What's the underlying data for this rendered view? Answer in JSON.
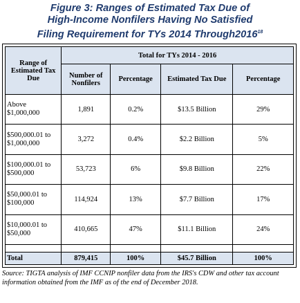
{
  "title_lines": [
    "Figure 3:  Ranges of Estimated Tax Due of",
    "High-Income Nonfilers Having No Satisfied",
    "Filing Requirement for TYs 2014 Through2016"
  ],
  "title_footnote": "18",
  "table": {
    "range_header": "Range of Estimated Tax Due",
    "group_header": "Total for TYs 2014 - 2016",
    "columns": [
      "Number of Nonfilers",
      "Percentage",
      "Estimated Tax Due",
      "Percentage"
    ],
    "rows": [
      {
        "range": "Above $1,000,000",
        "nonfilers": "1,891",
        "pct_nonfilers": "0.2%",
        "tax_due": "$13.5 Billion",
        "pct_tax": "29%"
      },
      {
        "range": "$500,000.01 to $1,000,000",
        "nonfilers": "3,272",
        "pct_nonfilers": "0.4%",
        "tax_due": "$2.2 Billion",
        "pct_tax": "5%"
      },
      {
        "range": "$100,000.01 to $500,000",
        "nonfilers": "53,723",
        "pct_nonfilers": "6%",
        "tax_due": "$9.8 Billion",
        "pct_tax": "22%"
      },
      {
        "range": "$50,000.01 to $100,000",
        "nonfilers": "114,924",
        "pct_nonfilers": "13%",
        "tax_due": "$7.7 Billion",
        "pct_tax": "17%"
      },
      {
        "range": "$10,000.01 to $50,000",
        "nonfilers": "410,665",
        "pct_nonfilers": "47%",
        "tax_due": "$11.1 Billion",
        "pct_tax": "24%"
      }
    ],
    "total": {
      "range": "Total",
      "nonfilers": "879,415",
      "pct_nonfilers": "100%",
      "tax_due": "$45.7 Billion",
      "pct_tax": "100%"
    }
  },
  "source": "Source:  TIGTA analysis of IMF CCNIP nonfiler data from the IRS's CDW and other tax account information obtained from the IMF as of the end of December 2018."
}
